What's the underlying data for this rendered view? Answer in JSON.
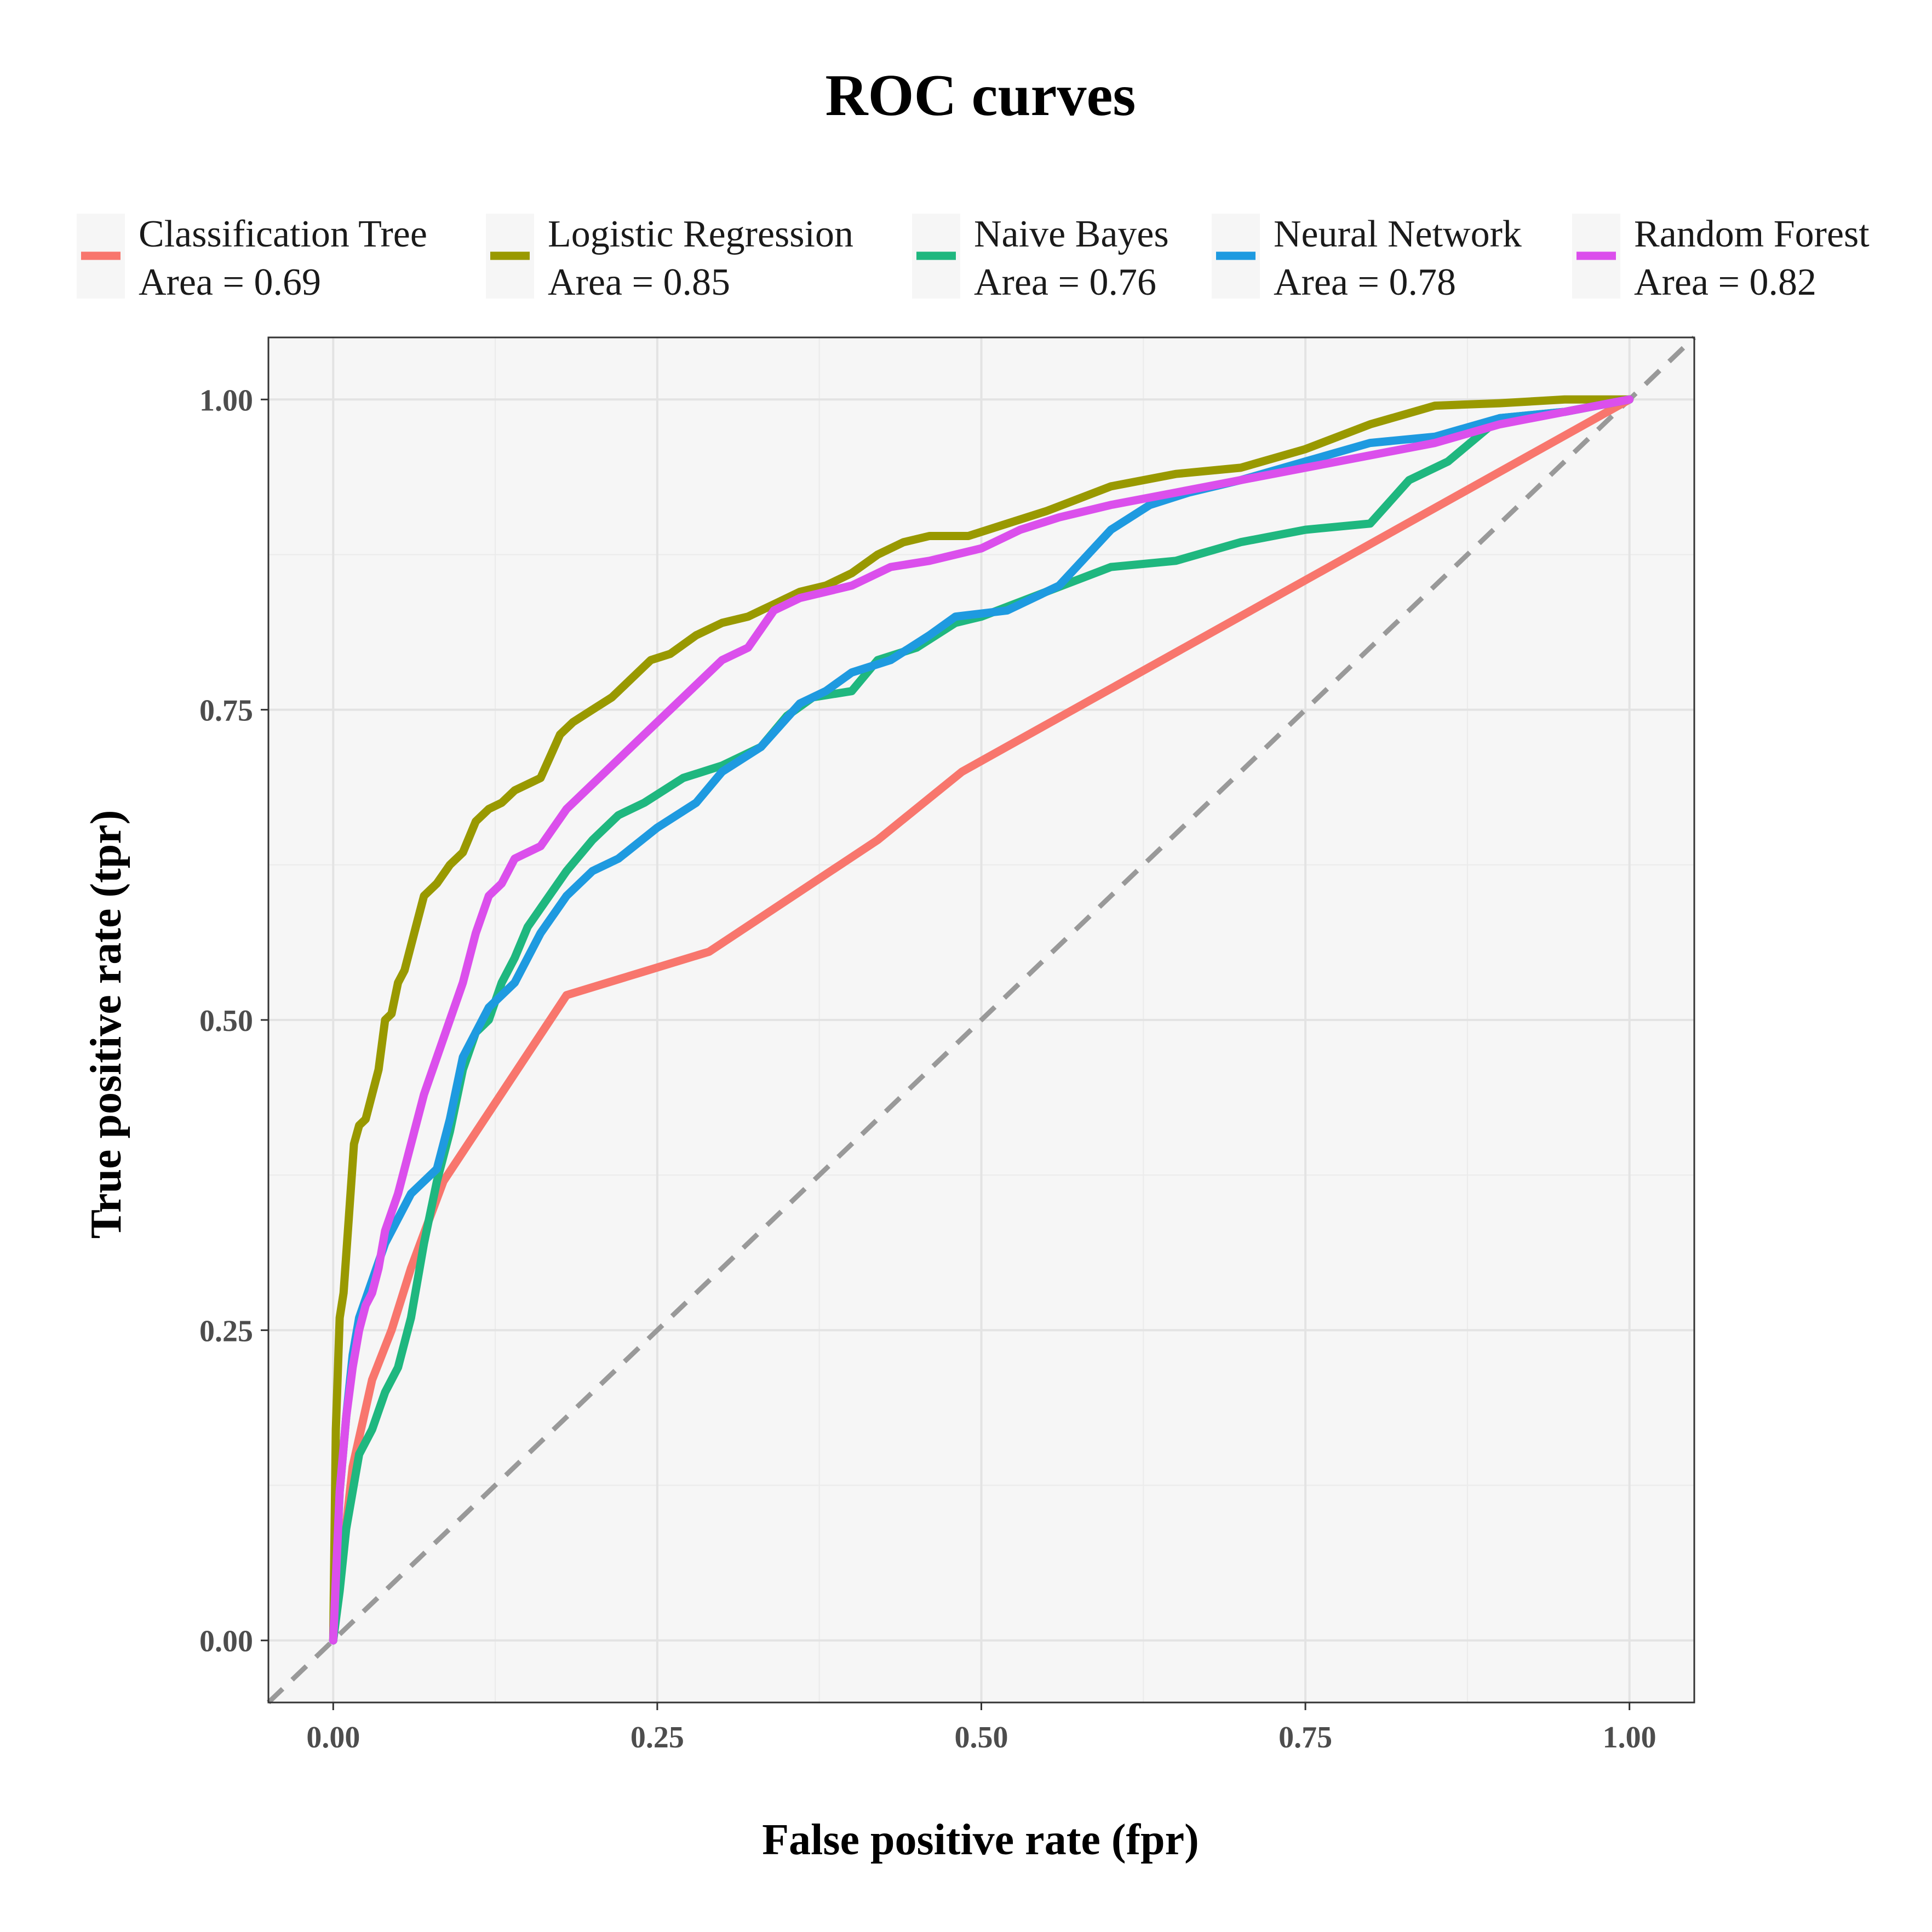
{
  "chart_data": {
    "type": "line",
    "title": "ROC curves",
    "xlabel": "False positive rate (fpr)",
    "ylabel": "True positive rate (tpr)",
    "xlim": [
      -0.05,
      1.05
    ],
    "ylim": [
      -0.05,
      1.05
    ],
    "xticks": [
      0.0,
      0.25,
      0.5,
      0.75,
      1.0
    ],
    "yticks": [
      0.0,
      0.25,
      0.5,
      0.75,
      1.0
    ],
    "xtick_labels": [
      "0.00",
      "0.25",
      "0.50",
      "0.75",
      "1.00"
    ],
    "ytick_labels": [
      "0.00",
      "0.25",
      "0.50",
      "0.75",
      "1.00"
    ],
    "grid": true,
    "legend_position": "top",
    "reference_line": {
      "x": [
        0,
        1
      ],
      "y": [
        0,
        1
      ],
      "color": "#999999",
      "style": "dashed"
    },
    "series": [
      {
        "name": "Classification Tree",
        "area_label": "Area = 0.69",
        "color": "#F8766D",
        "x": [
          0.0,
          0.015,
          0.03,
          0.045,
          0.06,
          0.085,
          0.18,
          0.29,
          0.42,
          0.485,
          1.0
        ],
        "y": [
          0.0,
          0.14,
          0.21,
          0.25,
          0.3,
          0.37,
          0.52,
          0.555,
          0.645,
          0.7,
          1.0
        ]
      },
      {
        "name": "Logistic Regression",
        "area_label": "Area = 0.85",
        "color": "#999900",
        "x": [
          0.0,
          0.002,
          0.005,
          0.008,
          0.012,
          0.016,
          0.02,
          0.025,
          0.03,
          0.035,
          0.04,
          0.045,
          0.05,
          0.055,
          0.06,
          0.065,
          0.07,
          0.08,
          0.09,
          0.1,
          0.11,
          0.12,
          0.13,
          0.14,
          0.16,
          0.175,
          0.185,
          0.2,
          0.215,
          0.23,
          0.245,
          0.26,
          0.28,
          0.3,
          0.32,
          0.34,
          0.36,
          0.38,
          0.4,
          0.42,
          0.44,
          0.46,
          0.49,
          0.52,
          0.55,
          0.6,
          0.65,
          0.7,
          0.75,
          0.8,
          0.85,
          0.9,
          0.95,
          1.0
        ],
        "y": [
          0.0,
          0.17,
          0.26,
          0.28,
          0.34,
          0.4,
          0.415,
          0.42,
          0.44,
          0.46,
          0.5,
          0.505,
          0.53,
          0.54,
          0.56,
          0.58,
          0.6,
          0.61,
          0.625,
          0.635,
          0.66,
          0.67,
          0.675,
          0.685,
          0.695,
          0.73,
          0.74,
          0.75,
          0.76,
          0.775,
          0.79,
          0.795,
          0.81,
          0.82,
          0.825,
          0.835,
          0.845,
          0.85,
          0.86,
          0.875,
          0.885,
          0.89,
          0.89,
          0.9,
          0.91,
          0.93,
          0.94,
          0.945,
          0.96,
          0.98,
          0.995,
          0.997,
          1.0,
          1.0
        ]
      },
      {
        "name": "Naive Bayes",
        "area_label": "Area = 0.76",
        "color": "#1FB77F",
        "x": [
          0.0,
          0.005,
          0.01,
          0.015,
          0.02,
          0.03,
          0.04,
          0.05,
          0.06,
          0.07,
          0.08,
          0.09,
          0.1,
          0.11,
          0.12,
          0.13,
          0.14,
          0.15,
          0.16,
          0.18,
          0.2,
          0.22,
          0.24,
          0.27,
          0.3,
          0.33,
          0.35,
          0.37,
          0.4,
          0.42,
          0.45,
          0.48,
          0.5,
          0.55,
          0.6,
          0.65,
          0.7,
          0.75,
          0.8,
          0.83,
          0.86,
          0.9,
          0.95,
          1.0
        ],
        "y": [
          0.0,
          0.04,
          0.09,
          0.12,
          0.15,
          0.17,
          0.2,
          0.22,
          0.26,
          0.32,
          0.37,
          0.41,
          0.46,
          0.49,
          0.5,
          0.53,
          0.55,
          0.575,
          0.59,
          0.62,
          0.645,
          0.665,
          0.675,
          0.695,
          0.705,
          0.72,
          0.745,
          0.76,
          0.765,
          0.79,
          0.8,
          0.82,
          0.825,
          0.845,
          0.865,
          0.87,
          0.885,
          0.895,
          0.9,
          0.935,
          0.95,
          0.985,
          0.99,
          1.0
        ]
      },
      {
        "name": "Neural Network",
        "area_label": "Area = 0.78",
        "color": "#1E9AE0",
        "x": [
          0.0,
          0.005,
          0.01,
          0.015,
          0.02,
          0.03,
          0.04,
          0.05,
          0.06,
          0.07,
          0.08,
          0.09,
          0.1,
          0.11,
          0.12,
          0.14,
          0.16,
          0.18,
          0.2,
          0.22,
          0.25,
          0.28,
          0.3,
          0.33,
          0.36,
          0.38,
          0.4,
          0.43,
          0.46,
          0.48,
          0.52,
          0.56,
          0.6,
          0.63,
          0.66,
          0.7,
          0.75,
          0.8,
          0.85,
          0.9,
          0.95,
          1.0
        ],
        "y": [
          0.0,
          0.12,
          0.18,
          0.23,
          0.26,
          0.29,
          0.32,
          0.34,
          0.36,
          0.37,
          0.38,
          0.42,
          0.47,
          0.49,
          0.51,
          0.53,
          0.57,
          0.6,
          0.62,
          0.63,
          0.655,
          0.675,
          0.7,
          0.72,
          0.755,
          0.765,
          0.78,
          0.79,
          0.81,
          0.825,
          0.83,
          0.85,
          0.895,
          0.915,
          0.925,
          0.935,
          0.95,
          0.965,
          0.97,
          0.985,
          0.99,
          1.0
        ]
      },
      {
        "name": "Random Forest",
        "area_label": "Area = 0.82",
        "color": "#DB4FEC",
        "x": [
          0.0,
          0.005,
          0.01,
          0.015,
          0.02,
          0.025,
          0.03,
          0.035,
          0.04,
          0.05,
          0.06,
          0.07,
          0.08,
          0.09,
          0.1,
          0.11,
          0.12,
          0.13,
          0.14,
          0.16,
          0.18,
          0.2,
          0.22,
          0.24,
          0.26,
          0.28,
          0.3,
          0.32,
          0.34,
          0.36,
          0.38,
          0.4,
          0.43,
          0.46,
          0.5,
          0.53,
          0.56,
          0.6,
          0.65,
          0.7,
          0.75,
          0.8,
          0.85,
          0.9,
          0.95,
          1.0
        ],
        "y": [
          0.0,
          0.12,
          0.18,
          0.22,
          0.25,
          0.27,
          0.28,
          0.3,
          0.33,
          0.36,
          0.4,
          0.44,
          0.47,
          0.5,
          0.53,
          0.57,
          0.6,
          0.61,
          0.63,
          0.64,
          0.67,
          0.69,
          0.71,
          0.73,
          0.75,
          0.77,
          0.79,
          0.8,
          0.83,
          0.84,
          0.845,
          0.85,
          0.865,
          0.87,
          0.88,
          0.895,
          0.905,
          0.915,
          0.925,
          0.935,
          0.945,
          0.955,
          0.965,
          0.98,
          0.99,
          1.0
        ]
      }
    ]
  }
}
